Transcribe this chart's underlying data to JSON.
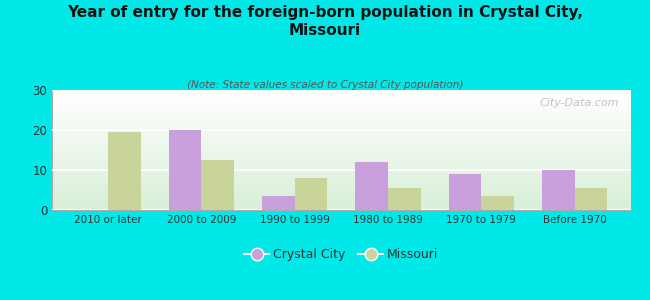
{
  "title": "Year of entry for the foreign-born population in Crystal City,\nMissouri",
  "subtitle": "(Note: State values scaled to Crystal City population)",
  "categories": [
    "2010 or later",
    "2000 to 2009",
    "1990 to 1999",
    "1980 to 1989",
    "1970 to 1979",
    "Before 1970"
  ],
  "crystal_city": [
    0,
    20,
    3.5,
    12,
    9,
    10
  ],
  "missouri": [
    19.5,
    12.5,
    8,
    5.5,
    3.5,
    5.5
  ],
  "crystal_city_color": "#c9a0dc",
  "missouri_color": "#c8d49a",
  "background_color": "#00e8e8",
  "ylim": [
    0,
    30
  ],
  "yticks": [
    0,
    10,
    20,
    30
  ],
  "bar_width": 0.35,
  "legend_crystal_city": "Crystal City",
  "legend_missouri": "Missouri",
  "watermark": "City-Data.com"
}
